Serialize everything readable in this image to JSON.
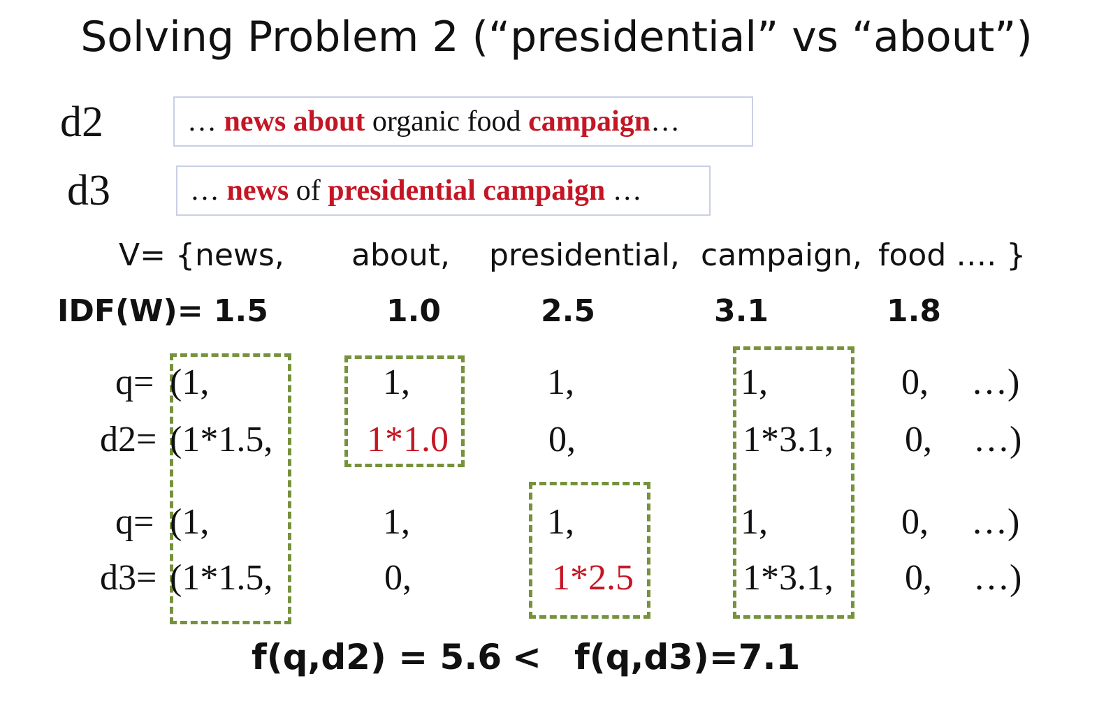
{
  "title": "Solving Problem 2 (“presidential” vs “about”)",
  "docs": [
    {
      "label": "d2",
      "segments": [
        {
          "text": "… ",
          "highlight": false
        },
        {
          "text": "news about",
          "highlight": true
        },
        {
          "text": " organic food ",
          "highlight": false
        },
        {
          "text": "campaign",
          "highlight": true
        },
        {
          "text": "…",
          "highlight": false
        }
      ]
    },
    {
      "label": "d3",
      "segments": [
        {
          "text": "… ",
          "highlight": false
        },
        {
          "text": "news",
          "highlight": true
        },
        {
          "text": " of ",
          "highlight": false
        },
        {
          "text": "presidential campaign",
          "highlight": true
        },
        {
          "text": " …",
          "highlight": false
        }
      ]
    }
  ],
  "vocab": {
    "prefix": "V= {news,",
    "words": [
      "about,",
      "presidential,",
      "campaign,",
      "food …. }"
    ]
  },
  "idf": {
    "prefix": "IDF(W)= 1.5",
    "values": [
      "1.0",
      "2.5",
      "3.1",
      "1.8"
    ]
  },
  "rows": [
    {
      "label": "q=",
      "cells": [
        "(1,",
        "1,",
        "1,",
        "1,",
        "0,",
        "…)"
      ]
    },
    {
      "label": "d2=",
      "cells": [
        "(1*1.5,",
        "1*1.0",
        "0,",
        "1*3.1,",
        "0,",
        "…)"
      ]
    },
    {
      "label": "q=",
      "cells": [
        "(1,",
        "1,",
        "1,",
        "1,",
        "0,",
        "…)"
      ]
    },
    {
      "label": "d3=",
      "cells": [
        "(1*1.5,",
        "0,",
        "1*2.5",
        "1*3.1,",
        "0,",
        "…)"
      ]
    }
  ],
  "highlight_color": "#c41624",
  "box_color": "#76923c",
  "formula": {
    "left": "f(q,d2) = 5.6",
    "op": "<",
    "right": "f(q,d3)=7.1"
  }
}
